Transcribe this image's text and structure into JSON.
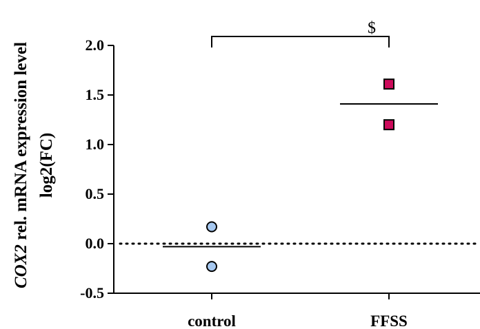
{
  "chart_data": {
    "type": "scatter",
    "title": "",
    "ylabel_gene": "COX2",
    "ylabel_rest": " rel. mRNA expression level",
    "ylabel_line2": "log2(FC)",
    "xlabel": "",
    "ylim": [
      -0.5,
      2.0
    ],
    "yticks": [
      -0.5,
      0.0,
      0.5,
      1.0,
      1.5,
      2.0
    ],
    "ytick_labels": [
      "-0.5",
      "0.0",
      "0.5",
      "1.0",
      "1.5",
      "2.0"
    ],
    "categories": [
      "control",
      "FFSS"
    ],
    "reference_line": {
      "y": 0.0,
      "style": "dotted"
    },
    "series": [
      {
        "category": "control",
        "marker": "circle",
        "color": "#a6c8f0",
        "values": [
          0.17,
          -0.23
        ],
        "mean": -0.03
      },
      {
        "category": "FFSS",
        "marker": "square",
        "color": "#cc0b5b",
        "values": [
          1.61,
          1.2
        ],
        "mean": 1.41
      }
    ],
    "significance": {
      "from": "control",
      "to": "FFSS",
      "label": "$"
    },
    "grid": false,
    "legend": "none"
  }
}
